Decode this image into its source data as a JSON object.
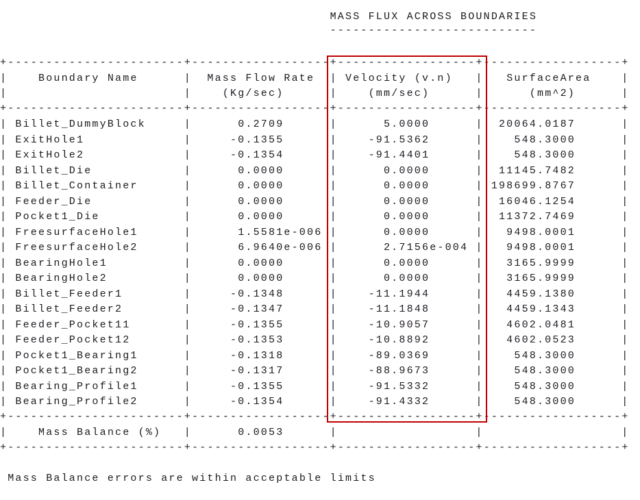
{
  "title": "MASS FLUX ACROSS BOUNDARIES",
  "headers": {
    "name": "Boundary Name",
    "flow": "Mass Flow Rate",
    "flow_unit": "(Kg/sec)",
    "velocity": "Velocity (v.n)",
    "velocity_unit": "(mm/sec)",
    "area": "SurfaceArea",
    "area_unit": "(mm^2)"
  },
  "rows": [
    {
      "name": "Billet_DummyBlock",
      "flow": "0.2709",
      "velocity": "5.0000",
      "area": "20064.0187"
    },
    {
      "name": "ExitHole1",
      "flow": "-0.1355",
      "velocity": "-91.5362",
      "area": "548.3000"
    },
    {
      "name": "ExitHole2",
      "flow": "-0.1354",
      "velocity": "-91.4401",
      "area": "548.3000"
    },
    {
      "name": "Billet_Die",
      "flow": "0.0000",
      "velocity": "0.0000",
      "area": "11145.7482"
    },
    {
      "name": "Billet_Container",
      "flow": "0.0000",
      "velocity": "0.0000",
      "area": "198699.8767"
    },
    {
      "name": "Feeder_Die",
      "flow": "0.0000",
      "velocity": "0.0000",
      "area": "16046.1254"
    },
    {
      "name": "Pocket1_Die",
      "flow": "0.0000",
      "velocity": "0.0000",
      "area": "11372.7469"
    },
    {
      "name": "FreesurfaceHole1",
      "flow": "1.5581e-006",
      "velocity": "0.0000",
      "area": "9498.0001"
    },
    {
      "name": "FreesurfaceHole2",
      "flow": "6.9640e-006",
      "velocity": "2.7156e-004",
      "area": "9498.0001"
    },
    {
      "name": "BearingHole1",
      "flow": "0.0000",
      "velocity": "0.0000",
      "area": "3165.9999"
    },
    {
      "name": "BearingHole2",
      "flow": "0.0000",
      "velocity": "0.0000",
      "area": "3165.9999"
    },
    {
      "name": "Billet_Feeder1",
      "flow": "-0.1348",
      "velocity": "-11.1944",
      "area": "4459.1380"
    },
    {
      "name": "Billet_Feeder2",
      "flow": "-0.1347",
      "velocity": "-11.1848",
      "area": "4459.1343"
    },
    {
      "name": "Feeder_Pocket11",
      "flow": "-0.1355",
      "velocity": "-10.9057",
      "area": "4602.0481"
    },
    {
      "name": "Feeder_Pocket12",
      "flow": "-0.1353",
      "velocity": "-10.8892",
      "area": "4602.0523"
    },
    {
      "name": "Pocket1_Bearing1",
      "flow": "-0.1318",
      "velocity": "-89.0369",
      "area": "548.3000"
    },
    {
      "name": "Pocket1_Bearing2",
      "flow": "-0.1317",
      "velocity": "-88.9673",
      "area": "548.3000"
    },
    {
      "name": "Bearing_Profile1",
      "flow": "-0.1355",
      "velocity": "-91.5332",
      "area": "548.3000"
    },
    {
      "name": "Bearing_Profile2",
      "flow": "-0.1354",
      "velocity": "-91.4332",
      "area": "548.3000"
    }
  ],
  "balance": {
    "label": "Mass Balance (%)",
    "value": "0.0053"
  },
  "footer": "Mass Balance errors are within acceptable limits",
  "highlight": {
    "column": "velocity",
    "color": "#c00000"
  }
}
